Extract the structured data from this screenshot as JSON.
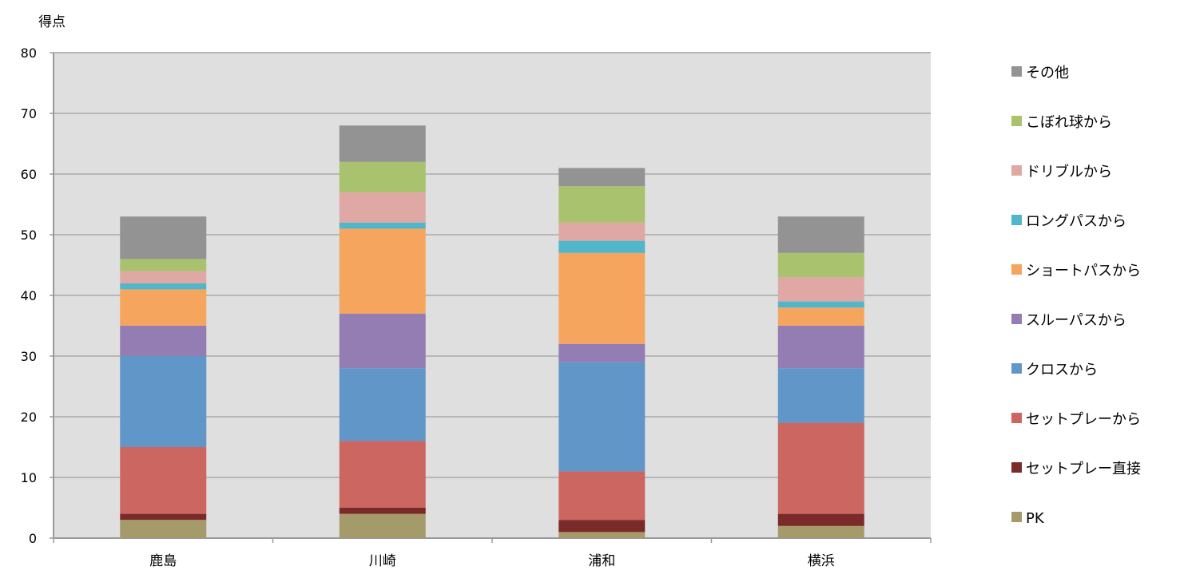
{
  "chart_data": {
    "type": "bar",
    "stacked": true,
    "title": "",
    "ylabel": "得点",
    "xlabel": "",
    "ylim": [
      0,
      80
    ],
    "yticks": [
      0,
      10,
      20,
      30,
      40,
      50,
      60,
      70,
      80
    ],
    "grid": true,
    "legend_position": "right",
    "categories": [
      "鹿島",
      "川崎",
      "浦和",
      "横浜"
    ],
    "series": [
      {
        "name": "PK",
        "color": "#a59a6a",
        "values": [
          3,
          4,
          1,
          2
        ]
      },
      {
        "name": "セットプレー直接",
        "color": "#7b2a2a",
        "values": [
          1,
          1,
          2,
          2
        ]
      },
      {
        "name": "セットプレーから",
        "color": "#cc6660",
        "values": [
          11,
          11,
          8,
          15
        ]
      },
      {
        "name": "クロスから",
        "color": "#6196c8",
        "values": [
          15,
          12,
          18,
          9
        ]
      },
      {
        "name": "スルーパスから",
        "color": "#947db2",
        "values": [
          5,
          9,
          3,
          7
        ]
      },
      {
        "name": "ショートパスから",
        "color": "#f6a55f",
        "values": [
          6,
          14,
          15,
          3
        ]
      },
      {
        "name": "ロングパスから",
        "color": "#4fb6cc",
        "values": [
          1,
          1,
          2,
          1
        ]
      },
      {
        "name": "ドリブルから",
        "color": "#e0a8a4",
        "values": [
          2,
          5,
          3,
          4
        ]
      },
      {
        "name": "こぼれ球から",
        "color": "#a9c26d",
        "values": [
          2,
          5,
          6,
          4
        ]
      },
      {
        "name": "その他",
        "color": "#939393",
        "values": [
          7,
          6,
          3,
          6
        ]
      }
    ]
  },
  "style": {
    "plot_background": "#dfdfdf",
    "grid_color": "#b7b7b7",
    "axis_color": "#9a9a9a"
  }
}
